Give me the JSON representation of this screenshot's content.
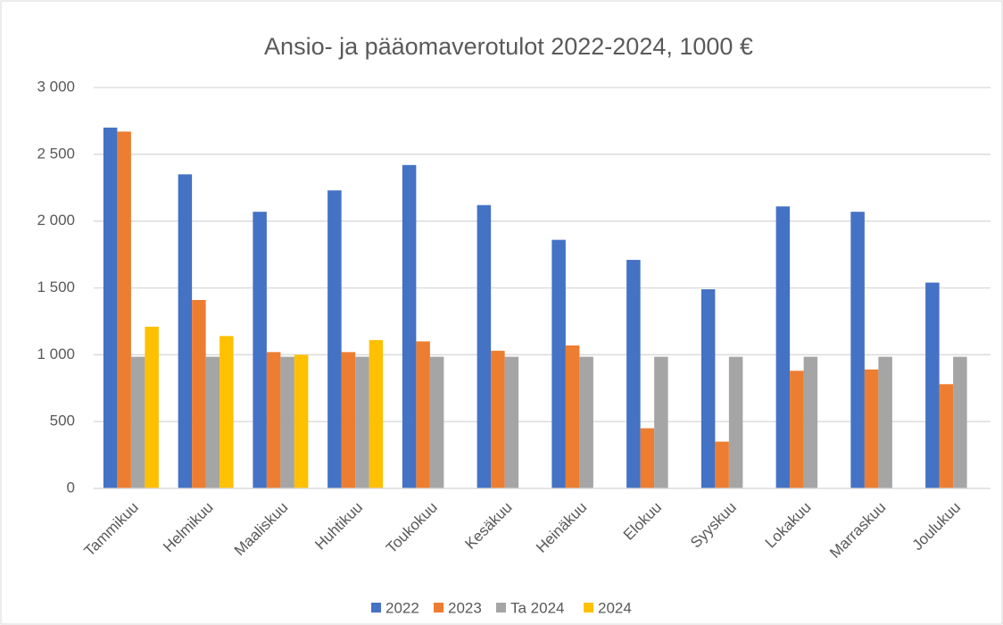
{
  "chart_data": {
    "type": "bar",
    "title": "Ansio- ja pääomaverotulot 2022-2024, 1000 €",
    "categories": [
      "Tammikuu",
      "Helmikuu",
      "Maaliskuu",
      "Huhtikuu",
      "Toukokuu",
      "Kesäkuu",
      "Heinäkuu",
      "Elokuu",
      "Syyskuu",
      "Lokakuu",
      "Marraskuu",
      "Joulukuu"
    ],
    "series": [
      {
        "name": "2022",
        "color": "#4472c4",
        "values": [
          2700,
          2350,
          2070,
          2230,
          2420,
          2120,
          1860,
          1710,
          1490,
          2110,
          2070,
          1540
        ]
      },
      {
        "name": "2023",
        "color": "#ed7d31",
        "values": [
          2670,
          1410,
          1020,
          1020,
          1100,
          1030,
          1070,
          450,
          350,
          880,
          890,
          780
        ]
      },
      {
        "name": "Ta 2024",
        "color": "#a5a5a5",
        "values": [
          985,
          985,
          985,
          985,
          985,
          985,
          985,
          985,
          985,
          985,
          985,
          985
        ]
      },
      {
        "name": "2024",
        "color": "#ffc000",
        "values": [
          1210,
          1140,
          1000,
          1110,
          null,
          null,
          null,
          null,
          null,
          null,
          null,
          null
        ]
      }
    ],
    "ylim": [
      0,
      3000
    ],
    "yticks": [
      0,
      500,
      {
        "value": 1000,
        "label": "1 000"
      },
      {
        "value": 1500,
        "label": "1 500"
      },
      {
        "value": 2000,
        "label": "2 000"
      },
      {
        "value": 2500,
        "label": "2 500"
      },
      {
        "value": 3000,
        "label": "3 000"
      }
    ],
    "grid": true,
    "legend": "bottom"
  }
}
